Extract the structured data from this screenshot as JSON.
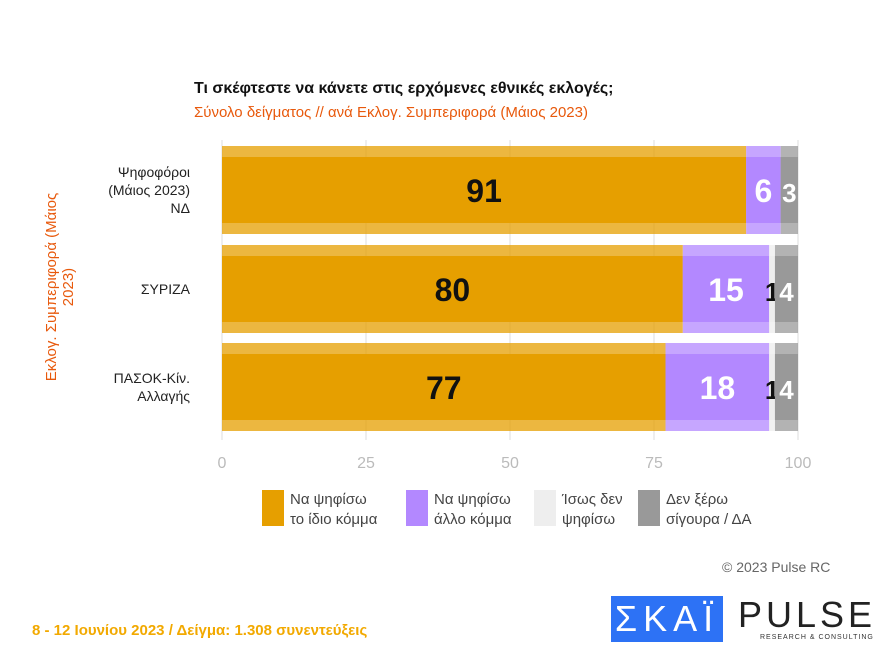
{
  "chart_data": {
    "type": "bar",
    "orientation": "horizontal",
    "stacked": true,
    "title": "Τι σκέφτεστε να κάνετε στις ερχόμενες εθνικές εκλογές;",
    "subtitle": "Σύνολο δείγματος // ανά Εκλογ. Συμπεριφορά (Μάιος 2023)",
    "ylabel": "Εκλογ. Συμπεριφορά (Μάιος 2023)",
    "categories": [
      [
        "Ψηφοφόροι",
        "(Μάιος 2023)",
        "ΝΔ"
      ],
      [
        "ΣΥΡΙΖΑ"
      ],
      [
        "ΠΑΣΟΚ-Κίν.",
        "Αλλαγής"
      ]
    ],
    "xlim": [
      0,
      100
    ],
    "xticks": [
      "0",
      "25",
      "50",
      "75",
      "100"
    ],
    "grid": true,
    "legend_position": "bottom",
    "series": [
      {
        "name": "Να ψηφίσω το ίδιο κόμμα",
        "color": "#e69f00",
        "label_color": "#111",
        "values": [
          91,
          80,
          77
        ]
      },
      {
        "name": "Να ψηφίσω άλλο κόμμα",
        "color": "#b388ff",
        "label_color": "#fff",
        "values": [
          6,
          15,
          18
        ]
      },
      {
        "name": "Ίσως δεν ψηφίσω",
        "color": "#eeeeee",
        "label_color": "#111",
        "values": [
          0,
          1,
          1
        ]
      },
      {
        "name": "Δεν ξέρω σίγουρα / ΔΑ",
        "color": "#999999",
        "label_color": "#fff",
        "values": [
          3,
          4,
          4
        ]
      }
    ]
  },
  "legend": [
    [
      "Να ψηφίσω",
      "το ίδιο κόμμα"
    ],
    [
      "Να ψηφίσω",
      "άλλο κόμμα"
    ],
    [
      "Ίσως δεν",
      "ψηφίσω"
    ],
    [
      "Δεν ξέρω",
      "σίγουρα / ΔΑ"
    ]
  ],
  "watermark": "PULSE RESEARCH & CONSULTING",
  "copyright": "© 2023 Pulse RC",
  "footer": "8 - 12 Ιουνίου  2023  /  Δείγμα:  1.308 συνεντεύξεις",
  "logos": {
    "skai": "ΣΚΑΪ",
    "pulse": "PULSE",
    "pulse_sub": "RESEARCH & CONSULTING"
  }
}
